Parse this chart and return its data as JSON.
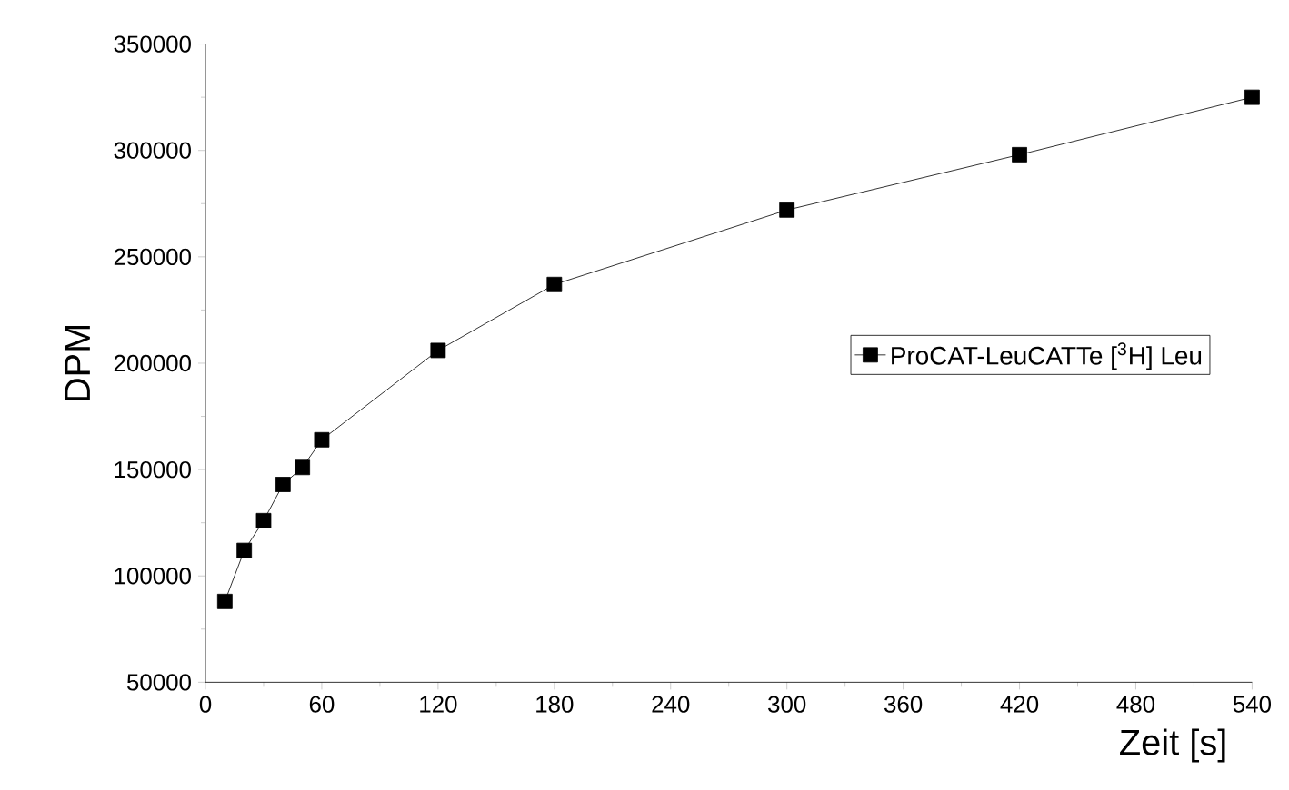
{
  "chart_data": {
    "type": "line",
    "xlabel": "Zeit   [s]",
    "ylabel": "DPM",
    "x": [
      10,
      20,
      30,
      40,
      50,
      60,
      120,
      180,
      300,
      420,
      540
    ],
    "series": [
      {
        "name": "ProCAT-LeuCATTe [$^{3}$H] Leu",
        "color": "#000000",
        "values": [
          88000,
          112000,
          126000,
          143000,
          151000,
          164000,
          206000,
          237000,
          272000,
          298000,
          325000
        ]
      }
    ],
    "xlim": [
      0,
      540
    ],
    "ylim": [
      50000,
      350000
    ],
    "xticks": [
      0,
      60,
      120,
      180,
      240,
      300,
      360,
      420,
      480,
      540
    ],
    "yticks": [
      50000,
      100000,
      150000,
      200000,
      250000,
      300000,
      350000
    ],
    "marker": "square",
    "line_style": "solid",
    "legend": "right",
    "grid": false
  }
}
